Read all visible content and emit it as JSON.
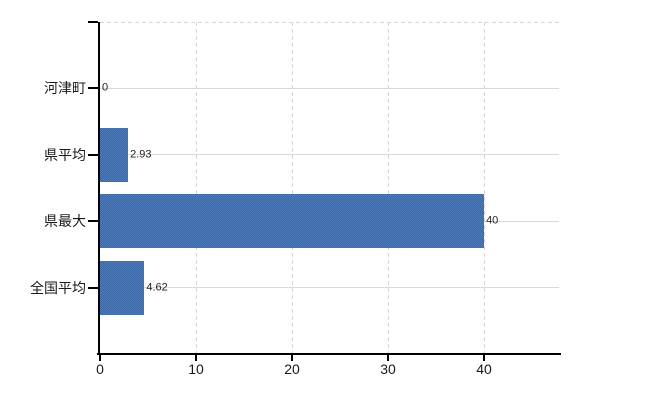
{
  "chart_data": {
    "type": "bar",
    "orientation": "horizontal",
    "title": "",
    "xlabel": "",
    "ylabel": "",
    "categories": [
      "河津町",
      "県平均",
      "県最大",
      "全国平均"
    ],
    "values": [
      0,
      2.93,
      40,
      4.62
    ],
    "data_labels": [
      "0",
      "2.93",
      "40",
      "4.62"
    ],
    "x_ticks": [
      0,
      10,
      20,
      30,
      40
    ],
    "x_tick_labels": [
      "0",
      "10",
      "20",
      "30",
      "40"
    ],
    "xlim": [
      0,
      47.7
    ],
    "grid": true,
    "legend": false,
    "colors": {
      "bar_fill": "#4473af",
      "bar_fill_dark": "#3a67a5",
      "bar_fill_light": "#4e7cbb",
      "h_gridline": "#d5ddd0",
      "v_gridline": "#d9d3d9",
      "top_border": "#d6d6d2",
      "axis": "#000000",
      "tick_label": "#1a1a1a",
      "data_label": "#222222"
    }
  }
}
